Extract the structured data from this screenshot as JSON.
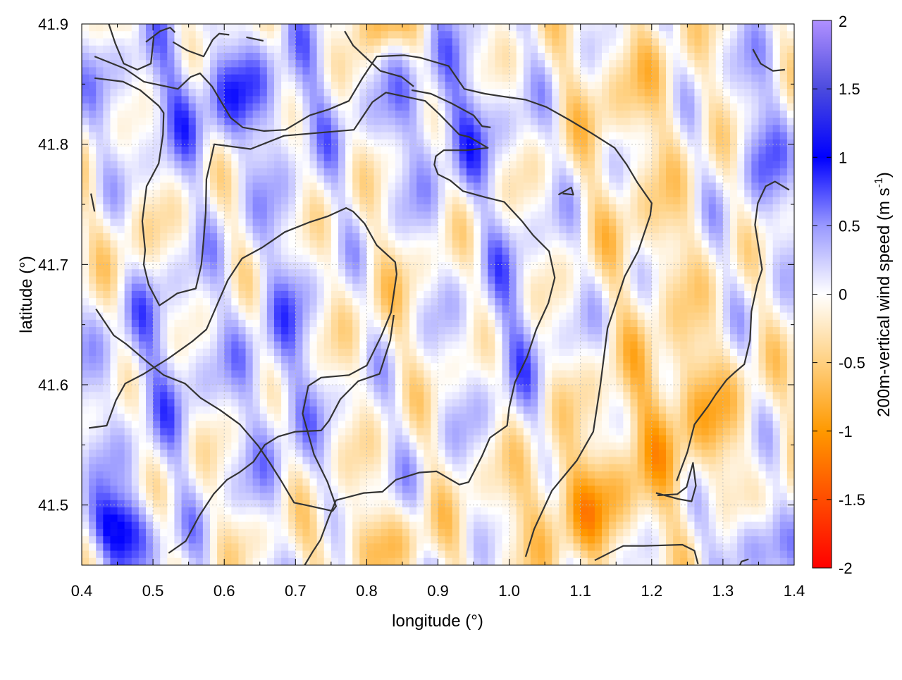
{
  "chart_data": {
    "type": "heatmap",
    "title": "",
    "xlabel": "longitude (°)",
    "ylabel": "latitude (°)",
    "xlim": [
      0.4,
      1.4
    ],
    "ylim": [
      41.45,
      41.9
    ],
    "x_ticks": [
      "0.4",
      "0.5",
      "0.6",
      "0.7",
      "0.8",
      "0.9",
      "1.0",
      "1.1",
      "1.2",
      "1.3",
      "1.4"
    ],
    "y_ticks": [
      "41.5",
      "41.6",
      "41.7",
      "41.8",
      "41.9"
    ],
    "x_tick_values": [
      0.4,
      0.5,
      0.6,
      0.7,
      0.8,
      0.9,
      1.0,
      1.1,
      1.2,
      1.3,
      1.4
    ],
    "y_tick_values": [
      41.5,
      41.6,
      41.7,
      41.8,
      41.9
    ],
    "grid": true,
    "colorbar": {
      "label": "200m-vertical wind speed (m s-1)",
      "label_main": "200m-vertical wind speed (m s",
      "label_sup": "-1",
      "label_end": ")",
      "range": [
        -2,
        2
      ],
      "ticks": [
        "2",
        "1.5",
        "1",
        "0.5",
        "0",
        "-0.5",
        "-1",
        "-1.5",
        "-2"
      ],
      "tick_values": [
        2,
        1.5,
        1,
        0.5,
        0,
        -0.5,
        -1,
        -1.5,
        -2
      ],
      "colors": [
        {
          "value": -2.0,
          "color": "#ff0000"
        },
        {
          "value": -1.0,
          "color": "#ff9900"
        },
        {
          "value": -0.5,
          "color": "#ffd080"
        },
        {
          "value": 0.0,
          "color": "#ffffff"
        },
        {
          "value": 0.5,
          "color": "#9999ff"
        },
        {
          "value": 1.0,
          "color": "#0000ff"
        },
        {
          "value": 1.5,
          "color": "#4b4bde"
        },
        {
          "value": 2.0,
          "color": "#b090ff"
        }
      ]
    },
    "contour_color": "#333333",
    "contours": [
      [
        [
          0.418,
          41.873
        ],
        [
          0.46,
          41.863
        ],
        [
          0.487,
          41.852
        ],
        [
          0.535,
          41.846
        ],
        [
          0.553,
          41.856
        ],
        [
          0.566,
          41.859
        ],
        [
          0.583,
          41.848
        ],
        [
          0.609,
          41.822
        ],
        [
          0.626,
          41.814
        ],
        [
          0.656,
          41.811
        ],
        [
          0.686,
          41.812
        ],
        [
          0.72,
          41.824
        ],
        [
          0.747,
          41.829
        ],
        [
          0.775,
          41.836
        ],
        [
          0.794,
          41.855
        ],
        [
          0.814,
          41.873
        ],
        [
          0.853,
          41.874
        ],
        [
          0.875,
          41.872
        ],
        [
          0.915,
          41.865
        ],
        [
          0.937,
          41.846
        ],
        [
          0.966,
          41.842
        ],
        [
          0.988,
          41.84
        ],
        [
          1.023,
          41.837
        ],
        [
          1.052,
          41.831
        ],
        [
          1.085,
          41.82
        ],
        [
          1.116,
          41.809
        ],
        [
          1.148,
          41.797
        ],
        [
          1.165,
          41.783
        ],
        [
          1.18,
          41.768
        ],
        [
          1.2,
          41.751
        ],
        [
          1.198,
          41.741
        ],
        [
          1.181,
          41.711
        ],
        [
          1.162,
          41.69
        ],
        [
          1.151,
          41.67
        ],
        [
          1.138,
          41.647
        ],
        [
          1.128,
          41.6
        ],
        [
          1.118,
          41.561
        ],
        [
          1.095,
          41.537
        ],
        [
          1.06,
          41.512
        ],
        [
          1.035,
          41.48
        ],
        [
          1.023,
          41.457
        ]
      ],
      [
        [
          0.418,
          41.855
        ],
        [
          0.458,
          41.852
        ],
        [
          0.482,
          41.845
        ],
        [
          0.508,
          41.832
        ],
        [
          0.515,
          41.826
        ],
        [
          0.514,
          41.808
        ],
        [
          0.508,
          41.784
        ],
        [
          0.491,
          41.765
        ],
        [
          0.485,
          41.736
        ],
        [
          0.489,
          41.712
        ],
        [
          0.487,
          41.7
        ],
        [
          0.494,
          41.683
        ],
        [
          0.509,
          41.666
        ],
        [
          0.522,
          41.671
        ],
        [
          0.534,
          41.676
        ],
        [
          0.56,
          41.68
        ],
        [
          0.568,
          41.7
        ],
        [
          0.571,
          41.72
        ],
        [
          0.574,
          41.743
        ],
        [
          0.575,
          41.771
        ],
        [
          0.582,
          41.789
        ],
        [
          0.586,
          41.8
        ],
        [
          0.637,
          41.796
        ],
        [
          0.684,
          41.807
        ],
        [
          0.782,
          41.812
        ],
        [
          0.808,
          41.835
        ],
        [
          0.827,
          41.843
        ],
        [
          0.882,
          41.836
        ],
        [
          0.902,
          41.825
        ],
        [
          0.93,
          41.808
        ],
        [
          0.944,
          41.806
        ],
        [
          0.97,
          41.797
        ],
        [
          0.94,
          41.795
        ],
        [
          0.908,
          41.795
        ],
        [
          0.897,
          41.79
        ],
        [
          0.895,
          41.783
        ],
        [
          0.9,
          41.775
        ],
        [
          0.917,
          41.77
        ],
        [
          0.935,
          41.761
        ],
        [
          0.966,
          41.756
        ],
        [
          0.993,
          41.752
        ],
        [
          1.018,
          41.736
        ],
        [
          1.034,
          41.724
        ],
        [
          1.056,
          41.711
        ],
        [
          1.064,
          41.689
        ],
        [
          1.055,
          41.668
        ],
        [
          1.038,
          41.646
        ],
        [
          1.025,
          41.623
        ],
        [
          1.008,
          41.602
        ],
        [
          1.0,
          41.581
        ],
        [
          0.997,
          41.566
        ],
        [
          0.973,
          41.556
        ],
        [
          0.962,
          41.541
        ],
        [
          0.943,
          41.519
        ],
        [
          0.93,
          41.517
        ],
        [
          0.898,
          41.528
        ],
        [
          0.874,
          41.527
        ],
        [
          0.841,
          41.521
        ],
        [
          0.822,
          41.511
        ],
        [
          0.796,
          41.51
        ],
        [
          0.757,
          41.504
        ],
        [
          0.747,
          41.49
        ],
        [
          0.735,
          41.471
        ],
        [
          0.724,
          41.461
        ],
        [
          0.713,
          41.45
        ]
      ],
      [
        [
          0.41,
          41.564
        ],
        [
          0.435,
          41.566
        ],
        [
          0.448,
          41.587
        ],
        [
          0.461,
          41.601
        ],
        [
          0.487,
          41.609
        ],
        [
          0.522,
          41.622
        ],
        [
          0.555,
          41.636
        ],
        [
          0.575,
          41.646
        ],
        [
          0.594,
          41.672
        ],
        [
          0.605,
          41.687
        ],
        [
          0.625,
          41.705
        ],
        [
          0.653,
          41.714
        ],
        [
          0.685,
          41.727
        ],
        [
          0.719,
          41.735
        ],
        [
          0.745,
          41.74
        ],
        [
          0.771,
          41.747
        ],
        [
          0.781,
          41.744
        ],
        [
          0.797,
          41.734
        ],
        [
          0.814,
          41.716
        ],
        [
          0.84,
          41.702
        ],
        [
          0.842,
          41.692
        ],
        [
          0.834,
          41.66
        ],
        [
          0.82,
          41.64
        ],
        [
          0.8,
          41.616
        ],
        [
          0.775,
          41.608
        ],
        [
          0.736,
          41.606
        ],
        [
          0.718,
          41.599
        ],
        [
          0.71,
          41.576
        ],
        [
          0.726,
          41.542
        ],
        [
          0.745,
          41.519
        ],
        [
          0.757,
          41.499
        ],
        [
          0.752,
          41.495
        ],
        [
          0.714,
          41.5
        ],
        [
          0.698,
          41.502
        ],
        [
          0.68,
          41.52
        ],
        [
          0.664,
          41.535
        ],
        [
          0.648,
          41.549
        ],
        [
          0.622,
          41.567
        ],
        [
          0.594,
          41.579
        ],
        [
          0.567,
          41.589
        ],
        [
          0.545,
          41.601
        ],
        [
          0.515,
          41.608
        ],
        [
          0.492,
          41.619
        ],
        [
          0.462,
          41.634
        ],
        [
          0.445,
          41.641
        ],
        [
          0.42,
          41.663
        ]
      ],
      [
        [
          0.522,
          41.46
        ],
        [
          0.546,
          41.47
        ],
        [
          0.565,
          41.491
        ],
        [
          0.585,
          41.509
        ],
        [
          0.604,
          41.521
        ],
        [
          0.621,
          41.527
        ],
        [
          0.641,
          41.536
        ],
        [
          0.657,
          41.55
        ],
        [
          0.676,
          41.557
        ],
        [
          0.7,
          41.561
        ],
        [
          0.736,
          41.562
        ],
        [
          0.747,
          41.57
        ],
        [
          0.763,
          41.588
        ],
        [
          0.788,
          41.603
        ],
        [
          0.818,
          41.609
        ],
        [
          0.833,
          41.637
        ],
        [
          0.838,
          41.658
        ]
      ],
      [
        [
          0.413,
          41.759
        ],
        [
          0.416,
          41.75
        ],
        [
          0.418,
          41.744
        ]
      ],
      [
        [
          0.438,
          41.9
        ],
        [
          0.447,
          41.884
        ],
        [
          0.459,
          41.867
        ],
        [
          0.478,
          41.862
        ],
        [
          0.497,
          41.867
        ],
        [
          0.501,
          41.889
        ]
      ],
      [
        [
          0.49,
          41.885
        ],
        [
          0.51,
          41.894
        ],
        [
          0.524,
          41.897
        ],
        [
          0.531,
          41.893
        ]
      ],
      [
        [
          0.528,
          41.885
        ],
        [
          0.548,
          41.878
        ],
        [
          0.571,
          41.873
        ],
        [
          0.584,
          41.887
        ],
        [
          0.593,
          41.892
        ],
        [
          0.607,
          41.891
        ]
      ],
      [
        [
          0.631,
          41.889
        ],
        [
          0.655,
          41.886
        ]
      ],
      [
        [
          0.769,
          41.894
        ],
        [
          0.781,
          41.882
        ],
        [
          0.799,
          41.872
        ],
        [
          0.819,
          41.861
        ],
        [
          0.849,
          41.856
        ],
        [
          0.866,
          41.848
        ]
      ],
      [
        [
          0.863,
          41.845
        ],
        [
          0.89,
          41.842
        ],
        [
          0.919,
          41.834
        ],
        [
          0.95,
          41.824
        ],
        [
          0.962,
          41.815
        ],
        [
          0.974,
          41.814
        ]
      ],
      [
        [
          1.342,
          41.879
        ],
        [
          1.353,
          41.867
        ],
        [
          1.37,
          41.861
        ],
        [
          1.387,
          41.862
        ]
      ],
      [
        [
          1.393,
          41.762
        ],
        [
          1.373,
          41.769
        ],
        [
          1.36,
          41.765
        ],
        [
          1.349,
          41.751
        ],
        [
          1.345,
          41.733
        ],
        [
          1.352,
          41.707
        ],
        [
          1.355,
          41.696
        ],
        [
          1.348,
          41.683
        ],
        [
          1.34,
          41.661
        ],
        [
          1.338,
          41.637
        ],
        [
          1.33,
          41.617
        ],
        [
          1.316,
          41.61
        ],
        [
          1.305,
          41.604
        ],
        [
          1.29,
          41.592
        ],
        [
          1.279,
          41.582
        ],
        [
          1.26,
          41.567
        ],
        [
          1.25,
          41.544
        ],
        [
          1.235,
          41.52
        ]
      ],
      [
        [
          1.206,
          41.51
        ],
        [
          1.237,
          41.505
        ],
        [
          1.256,
          41.503
        ],
        [
          1.262,
          41.516
        ],
        [
          1.258,
          41.535
        ],
        [
          1.249,
          41.515
        ],
        [
          1.236,
          41.509
        ],
        [
          1.208,
          41.508
        ]
      ],
      [
        [
          1.12,
          41.454
        ],
        [
          1.16,
          41.466
        ],
        [
          1.189,
          41.466
        ],
        [
          1.243,
          41.467
        ],
        [
          1.26,
          41.462
        ],
        [
          1.265,
          41.451
        ]
      ],
      [
        [
          1.069,
          41.758
        ],
        [
          1.087,
          41.764
        ],
        [
          1.09,
          41.758
        ],
        [
          1.075,
          41.759
        ]
      ],
      [
        [
          1.336,
          41.455
        ],
        [
          1.326,
          41.453
        ],
        [
          1.323,
          41.449
        ]
      ]
    ]
  }
}
